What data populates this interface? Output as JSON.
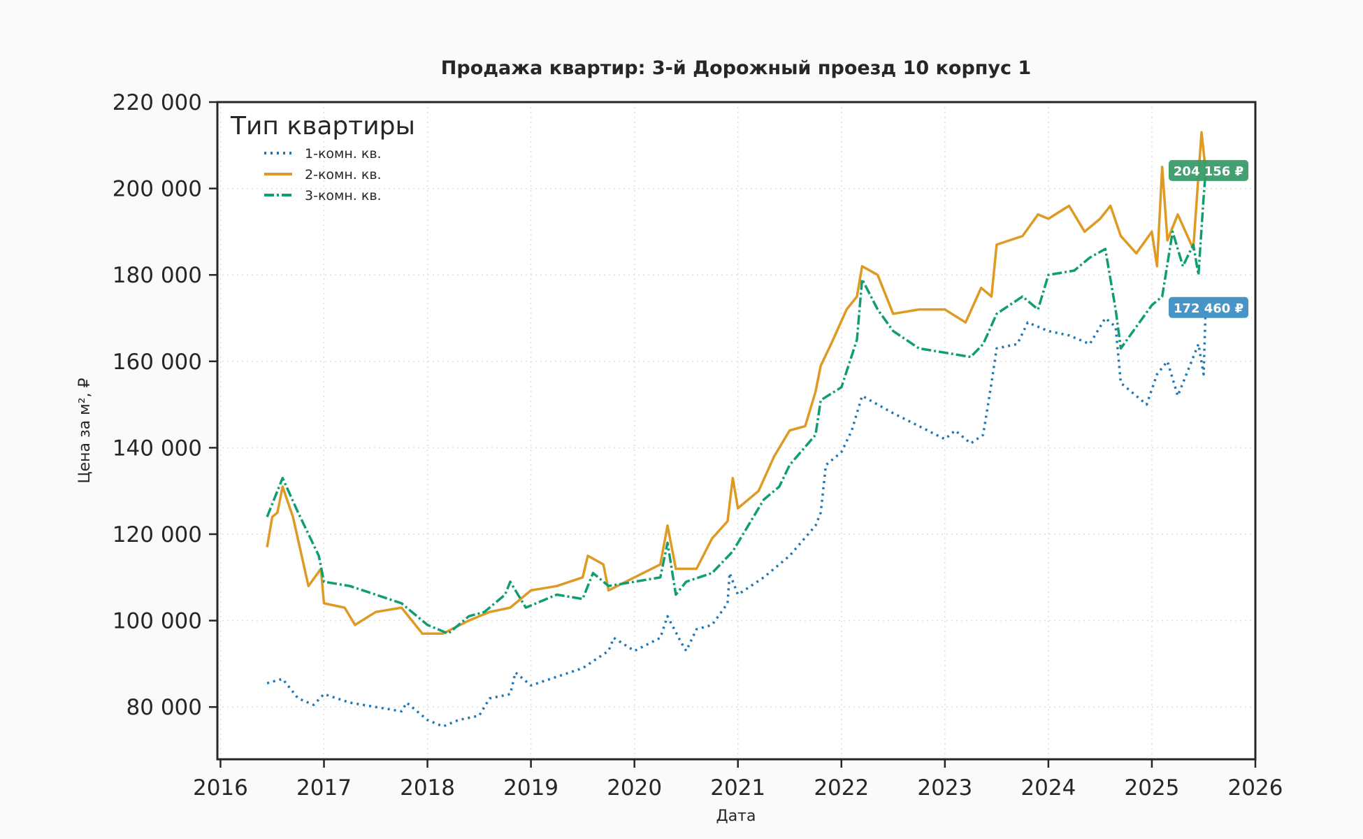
{
  "chart_data": {
    "type": "line",
    "title": "Продажа квартир: 3-й Дорожный проезд 10 корпус 1",
    "xlabel": "Дата",
    "ylabel": "Цена за м², ₽",
    "xlim": [
      2015.97,
      2026.0
    ],
    "ylim": [
      67900,
      220000
    ],
    "x_ticks": [
      2016,
      2017,
      2018,
      2019,
      2020,
      2021,
      2022,
      2023,
      2024,
      2025,
      2026
    ],
    "x_tick_labels": [
      "2016",
      "2017",
      "2018",
      "2019",
      "2020",
      "2021",
      "2022",
      "2023",
      "2024",
      "2025",
      "2026"
    ],
    "y_ticks": [
      80000,
      100000,
      120000,
      140000,
      160000,
      180000,
      200000,
      220000
    ],
    "y_tick_labels": [
      "80 000",
      "100 000",
      "120 000",
      "140 000",
      "160 000",
      "180 000",
      "200 000",
      "220 000"
    ],
    "grid": true,
    "legend": {
      "title": "Тип квартиры",
      "placement": "top-left"
    },
    "series": [
      {
        "name": "1-комн. кв.",
        "color": "#1f78b4",
        "style": "dotted",
        "x": [
          2016.45,
          2016.6,
          2016.75,
          2016.9,
          2017.0,
          2017.25,
          2017.5,
          2017.75,
          2017.8,
          2018.0,
          2018.15,
          2018.3,
          2018.5,
          2018.6,
          2018.8,
          2018.85,
          2019.0,
          2019.25,
          2019.5,
          2019.75,
          2019.8,
          2020.0,
          2020.25,
          2020.32,
          2020.45,
          2020.5,
          2020.6,
          2020.75,
          2020.9,
          2020.92,
          2021.0,
          2021.25,
          2021.5,
          2021.75,
          2021.8,
          2021.85,
          2022.0,
          2022.1,
          2022.2,
          2022.35,
          2022.5,
          2022.75,
          2023.0,
          2023.1,
          2023.25,
          2023.37,
          2023.45,
          2023.5,
          2023.7,
          2023.8,
          2024.0,
          2024.2,
          2024.4,
          2024.55,
          2024.65,
          2024.7,
          2024.8,
          2024.95,
          2025.05,
          2025.15,
          2025.25,
          2025.35,
          2025.45,
          2025.5,
          2025.52
        ],
        "values": [
          85500,
          86500,
          82000,
          80500,
          83000,
          81000,
          80000,
          79000,
          81000,
          77000,
          75500,
          77000,
          78000,
          82000,
          83000,
          88000,
          85000,
          87000,
          89000,
          93000,
          96000,
          93000,
          96000,
          101000,
          95000,
          93000,
          98000,
          99000,
          104000,
          111000,
          106000,
          110000,
          115000,
          122000,
          125000,
          136000,
          139000,
          144000,
          152000,
          150000,
          148000,
          145000,
          142000,
          144000,
          141000,
          143000,
          155000,
          163000,
          164000,
          169000,
          167000,
          166000,
          164000,
          170000,
          168000,
          155000,
          153000,
          150000,
          157000,
          160000,
          152000,
          158000,
          164000,
          157000,
          172460
        ],
        "end_label": "172 460 ₽",
        "label_color": "#3d8fc4"
      },
      {
        "name": "2-комн. кв.",
        "color": "#de9a22",
        "style": "solid",
        "x": [
          2016.45,
          2016.5,
          2016.55,
          2016.6,
          2016.7,
          2016.85,
          2016.97,
          2017.0,
          2017.2,
          2017.3,
          2017.5,
          2017.75,
          2017.95,
          2018.15,
          2018.4,
          2018.6,
          2018.8,
          2019.0,
          2019.25,
          2019.5,
          2019.55,
          2019.7,
          2019.75,
          2020.0,
          2020.25,
          2020.32,
          2020.4,
          2020.6,
          2020.75,
          2020.9,
          2020.95,
          2021.0,
          2021.2,
          2021.35,
          2021.5,
          2021.65,
          2021.75,
          2021.8,
          2021.9,
          2022.05,
          2022.15,
          2022.2,
          2022.35,
          2022.5,
          2022.75,
          2023.0,
          2023.2,
          2023.35,
          2023.45,
          2023.5,
          2023.75,
          2023.9,
          2024.0,
          2024.2,
          2024.35,
          2024.5,
          2024.6,
          2024.7,
          2024.85,
          2025.0,
          2025.05,
          2025.1,
          2025.15,
          2025.25,
          2025.4,
          2025.45,
          2025.48,
          2025.52
        ],
        "values": [
          117000,
          124000,
          125000,
          131000,
          124000,
          108000,
          112000,
          104000,
          103000,
          99000,
          102000,
          103000,
          97000,
          97000,
          100000,
          102000,
          103000,
          107000,
          108000,
          110000,
          115000,
          113000,
          107000,
          110000,
          113000,
          122000,
          112000,
          112000,
          119000,
          123000,
          133000,
          126000,
          130000,
          138000,
          144000,
          145000,
          153000,
          159000,
          164000,
          172000,
          175000,
          182000,
          180000,
          171000,
          172000,
          172000,
          169000,
          177000,
          175000,
          187000,
          189000,
          194000,
          193000,
          196000,
          190000,
          193000,
          196000,
          189000,
          185000,
          190000,
          182000,
          205000,
          188000,
          194000,
          186000,
          203000,
          213000,
          204156
        ],
        "end_label": "",
        "label_color": "#de9a22"
      },
      {
        "name": "3-комн. кв.",
        "color": "#0f9e74",
        "style": "dashdot",
        "x": [
          2016.45,
          2016.6,
          2016.75,
          2016.85,
          2016.95,
          2017.0,
          2017.25,
          2017.5,
          2017.75,
          2017.85,
          2018.0,
          2018.2,
          2018.4,
          2018.55,
          2018.75,
          2018.8,
          2018.95,
          2019.25,
          2019.5,
          2019.6,
          2019.75,
          2020.0,
          2020.25,
          2020.32,
          2020.4,
          2020.5,
          2020.75,
          2020.95,
          2021.1,
          2021.25,
          2021.4,
          2021.5,
          2021.75,
          2021.8,
          2022.0,
          2022.15,
          2022.2,
          2022.35,
          2022.5,
          2022.75,
          2023.0,
          2023.25,
          2023.37,
          2023.5,
          2023.75,
          2023.9,
          2024.0,
          2024.25,
          2024.4,
          2024.55,
          2024.65,
          2024.7,
          2024.85,
          2025.0,
          2025.1,
          2025.2,
          2025.3,
          2025.4,
          2025.45,
          2025.5,
          2025.52
        ],
        "values": [
          124000,
          133000,
          125000,
          120000,
          115000,
          109000,
          108000,
          106000,
          104000,
          102000,
          99000,
          97000,
          101000,
          102000,
          106000,
          109000,
          103000,
          106000,
          105000,
          111000,
          108000,
          109000,
          110000,
          118000,
          106000,
          109000,
          111000,
          116000,
          122000,
          128000,
          131000,
          136000,
          143000,
          151000,
          154000,
          165000,
          179000,
          172000,
          167000,
          163000,
          162000,
          161000,
          164000,
          171000,
          175000,
          172000,
          180000,
          181000,
          184000,
          186000,
          172000,
          163000,
          168000,
          173000,
          175000,
          190000,
          182000,
          187000,
          180000,
          198000,
          204156
        ],
        "end_label": "204 156 ₽",
        "label_color": "#3a9b68"
      }
    ]
  }
}
